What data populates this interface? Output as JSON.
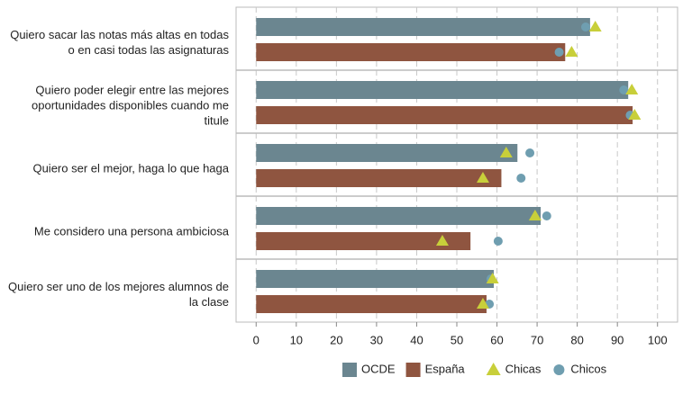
{
  "chart_data": {
    "type": "bar",
    "orientation": "horizontal",
    "categories": [
      "Quiero sacar las notas más altas en todas o en casi todas las asignaturas",
      "Quiero poder elegir entre las mejores oportunidades disponibles cuando me titule",
      "Quiero ser el mejor, haga lo que haga",
      "Me considero una persona ambiciosa",
      "Quiero ser uno de los mejores alumnos de la clase"
    ],
    "series": [
      {
        "name": "OCDE",
        "color": "#6b8690",
        "shape": "bar",
        "row": 0,
        "values": [
          83.2,
          92.7,
          65.1,
          70.9,
          59.2
        ]
      },
      {
        "name": "España",
        "color": "#8f5540",
        "shape": "bar",
        "row": 1,
        "values": [
          77.0,
          93.8,
          61.1,
          53.4,
          57.4
        ]
      },
      {
        "name": "Chicas",
        "color": "#c8cf3a",
        "shape": "triangle",
        "row": 0,
        "values": [
          84.5,
          93.6,
          62.3,
          69.5,
          58.9
        ]
      },
      {
        "name": "Chicas",
        "color": "#c8cf3a",
        "shape": "triangle",
        "row": 1,
        "values": [
          78.6,
          94.3,
          56.5,
          46.4,
          56.5
        ]
      },
      {
        "name": "Chicos",
        "color": "#6f9eb0",
        "shape": "circle",
        "row": 0,
        "values": [
          82.1,
          91.6,
          68.2,
          72.4,
          58.5
        ]
      },
      {
        "name": "Chicos",
        "color": "#6f9eb0",
        "shape": "circle",
        "row": 1,
        "values": [
          75.5,
          93.2,
          66.0,
          60.3,
          58.1
        ]
      }
    ],
    "xlim": [
      -5,
      105
    ],
    "xticks": [
      0,
      10,
      20,
      30,
      40,
      50,
      60,
      70,
      80,
      90,
      100
    ],
    "grid": true,
    "legend": "bottom"
  }
}
